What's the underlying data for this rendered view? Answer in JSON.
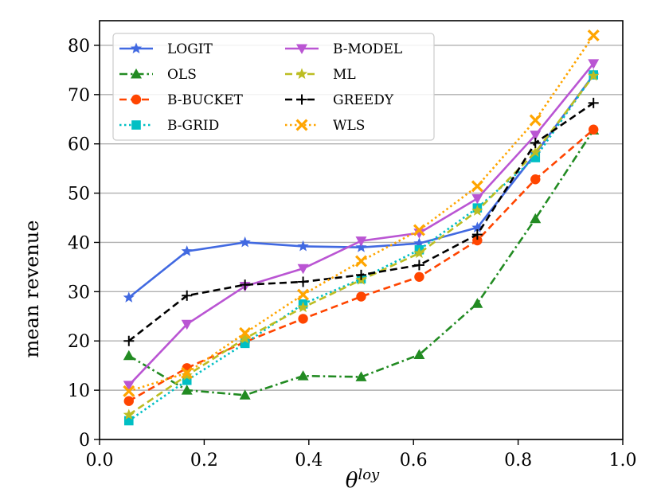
{
  "chart_data": {
    "type": "line",
    "title": "",
    "xlabel": "θ",
    "xlabel_superscript": "loy",
    "ylabel": "mean revenue",
    "xlim": [
      0.0,
      1.0
    ],
    "ylim": [
      0,
      85
    ],
    "xticks": [
      0.0,
      0.2,
      0.4,
      0.6,
      0.8,
      1.0
    ],
    "xtick_labels": [
      "0.0",
      "0.2",
      "0.4",
      "0.6",
      "0.8",
      "1.0"
    ],
    "yticks": [
      0,
      10,
      20,
      30,
      40,
      50,
      60,
      70,
      80
    ],
    "ytick_labels": [
      "0",
      "10",
      "20",
      "30",
      "40",
      "50",
      "60",
      "70",
      "80"
    ],
    "grid": "horizontal",
    "legend_position": "top-left",
    "x": [
      0.056,
      0.167,
      0.278,
      0.389,
      0.5,
      0.611,
      0.722,
      0.833,
      0.944
    ],
    "series": [
      {
        "name": "LOGIT",
        "color": "#4169e1",
        "dash": "solid",
        "marker": "star",
        "values": [
          28.8,
          38.2,
          40.0,
          39.2,
          39.0,
          39.8,
          43.0,
          58.0,
          74.0
        ]
      },
      {
        "name": "OLS",
        "color": "#228b22",
        "dash": "dashdot",
        "marker": "triangle-up",
        "values": [
          17.0,
          10.0,
          9.0,
          12.9,
          12.7,
          17.2,
          27.6,
          44.8,
          62.8
        ]
      },
      {
        "name": "B-BUCKET",
        "color": "#ff4500",
        "dash": "dashed",
        "marker": "circle",
        "values": [
          7.8,
          14.5,
          19.8,
          24.5,
          29.0,
          33.0,
          40.4,
          52.8,
          62.9
        ]
      },
      {
        "name": "B-GRID",
        "color": "#00bfc4",
        "dash": "dotted",
        "marker": "square",
        "values": [
          3.8,
          12.0,
          19.5,
          27.5,
          32.6,
          38.5,
          47.0,
          57.2,
          74.0
        ]
      },
      {
        "name": "B-MODEL",
        "color": "#ba55d3",
        "dash": "solid",
        "marker": "triangle-down",
        "values": [
          11.0,
          23.4,
          31.1,
          34.7,
          40.3,
          41.9,
          48.9,
          61.8,
          76.3
        ]
      },
      {
        "name": "ML",
        "color": "#bcbd22",
        "dash": "dashed",
        "marker": "star",
        "values": [
          5.0,
          13.0,
          20.5,
          26.8,
          32.4,
          37.8,
          46.4,
          58.3,
          73.8
        ]
      },
      {
        "name": "GREEDY",
        "color": "#000000",
        "dash": "dashed",
        "marker": "plus",
        "values": [
          20.0,
          29.2,
          31.4,
          32.0,
          33.4,
          35.4,
          41.6,
          60.2,
          68.3
        ]
      },
      {
        "name": "WLS",
        "color": "#ffa500",
        "dash": "dotted",
        "marker": "x",
        "values": [
          9.8,
          13.5,
          21.6,
          29.4,
          36.2,
          42.5,
          51.4,
          64.8,
          82.0
        ]
      }
    ]
  }
}
